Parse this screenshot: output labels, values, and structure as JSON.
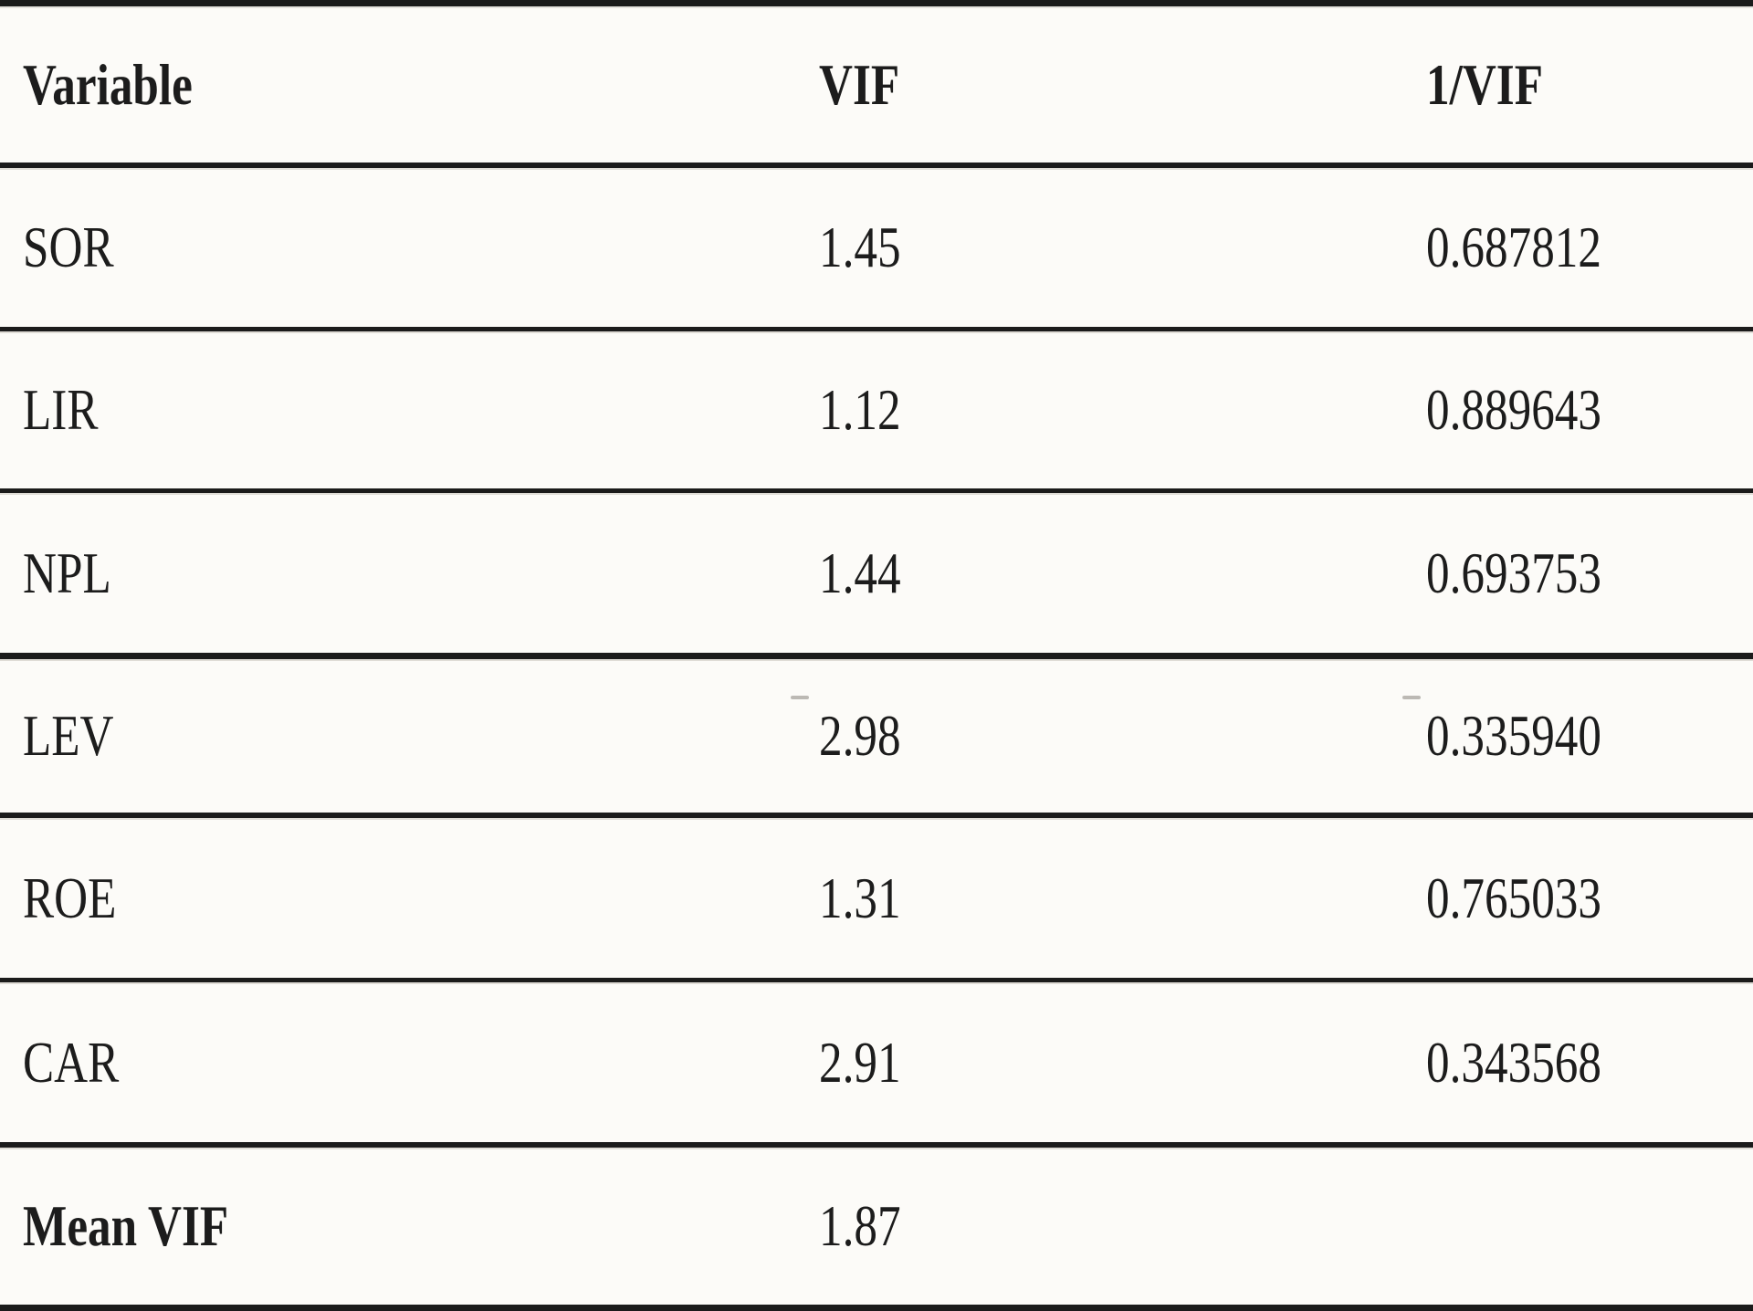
{
  "table": {
    "headers": {
      "variable": "Variable",
      "vif": "VIF",
      "inv_vif": "1/VIF"
    },
    "rows": [
      {
        "variable": "SOR",
        "vif": "1.45",
        "inv_vif": "0.687812"
      },
      {
        "variable": "LIR",
        "vif": "1.12",
        "inv_vif": "0.889643"
      },
      {
        "variable": "NPL",
        "vif": "1.44",
        "inv_vif": "0.693753"
      },
      {
        "variable": "LEV",
        "vif": "2.98",
        "inv_vif": "0.335940"
      },
      {
        "variable": "ROE",
        "vif": "1.31",
        "inv_vif": "0.765033"
      },
      {
        "variable": "CAR",
        "vif": "2.91",
        "inv_vif": "0.343568"
      },
      {
        "variable": "Mean VIF",
        "vif": "1.87",
        "inv_vif": ""
      }
    ],
    "colors": {
      "line": "#1b1b1b",
      "background": "#fcfbf8",
      "text": "#1c1c1c"
    }
  }
}
